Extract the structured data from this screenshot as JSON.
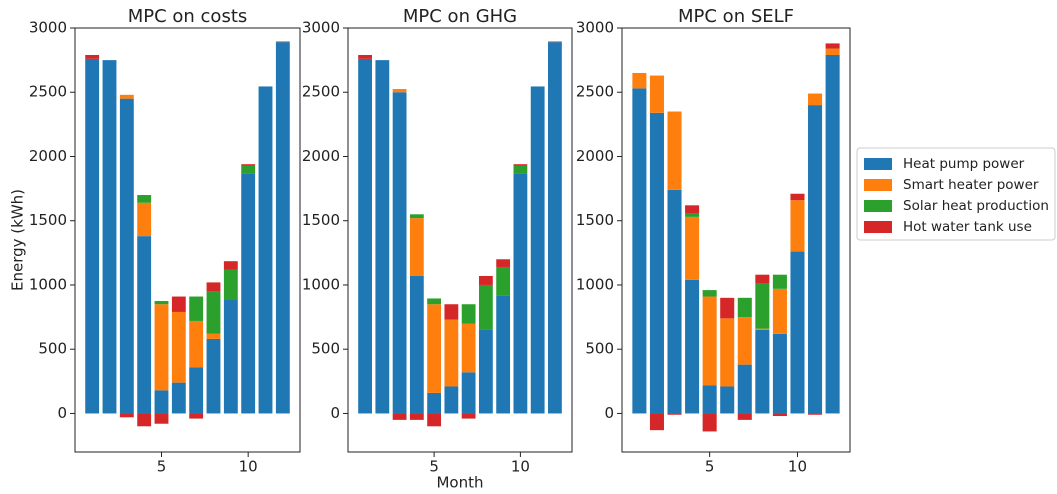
{
  "chart_data": [
    {
      "type": "bar",
      "stacked": true,
      "title": "MPC on costs",
      "ylabel": "Energy (kWh)",
      "x": [
        1,
        2,
        3,
        4,
        5,
        6,
        7,
        8,
        9,
        10,
        11,
        12
      ],
      "xlim": [
        0.01,
        12.99
      ],
      "xticks": [
        5,
        10
      ],
      "ylim": [
        -300,
        3000
      ],
      "yticks": [
        0,
        500,
        1000,
        1500,
        2000,
        2500,
        3000
      ],
      "series": [
        {
          "name": "Heat pump power",
          "color": "#1f77b4",
          "values": [
            2760,
            2750,
            2450,
            1380,
            180,
            240,
            360,
            580,
            890,
            1870,
            2545,
            2890
          ]
        },
        {
          "name": "Smart heater power",
          "color": "#ff7f0e",
          "values": [
            0,
            0,
            30,
            260,
            670,
            550,
            360,
            40,
            0,
            0,
            0,
            0
          ]
        },
        {
          "name": "Solar heat production",
          "color": "#2ca02c",
          "values": [
            0,
            0,
            0,
            60,
            25,
            0,
            190,
            330,
            230,
            60,
            0,
            0
          ]
        },
        {
          "name": "Hot water tank use",
          "color": "#d62728",
          "values": [
            30,
            0,
            -30,
            -100,
            -80,
            120,
            -40,
            70,
            65,
            10,
            0,
            5
          ]
        }
      ]
    },
    {
      "type": "bar",
      "stacked": true,
      "title": "MPC on GHG",
      "xlabel": "Month",
      "x": [
        1,
        2,
        3,
        4,
        5,
        6,
        7,
        8,
        9,
        10,
        11,
        12
      ],
      "xlim": [
        0.01,
        12.99
      ],
      "xticks": [
        5,
        10
      ],
      "ylim": [
        -300,
        3000
      ],
      "yticks": [
        0,
        500,
        1000,
        1500,
        2000,
        2500,
        3000
      ],
      "series": [
        {
          "name": "Heat pump power",
          "color": "#1f77b4",
          "values": [
            2760,
            2750,
            2500,
            1070,
            160,
            210,
            320,
            650,
            920,
            1870,
            2545,
            2890
          ]
        },
        {
          "name": "Smart heater power",
          "color": "#ff7f0e",
          "values": [
            0,
            0,
            25,
            450,
            690,
            520,
            380,
            0,
            0,
            0,
            0,
            0
          ]
        },
        {
          "name": "Solar heat production",
          "color": "#2ca02c",
          "values": [
            0,
            0,
            0,
            30,
            45,
            0,
            150,
            350,
            220,
            60,
            0,
            0
          ]
        },
        {
          "name": "Hot water tank use",
          "color": "#d62728",
          "values": [
            30,
            0,
            -50,
            -50,
            -100,
            120,
            -40,
            70,
            60,
            10,
            0,
            5
          ]
        }
      ]
    },
    {
      "type": "bar",
      "stacked": true,
      "title": "MPC on SELF",
      "x": [
        1,
        2,
        3,
        4,
        5,
        6,
        7,
        8,
        9,
        10,
        11,
        12
      ],
      "xlim": [
        0.01,
        12.99
      ],
      "xticks": [
        5,
        10
      ],
      "ylim": [
        -300,
        3000
      ],
      "yticks": [
        0,
        500,
        1000,
        1500,
        2000,
        2500,
        3000
      ],
      "series": [
        {
          "name": "Heat pump power",
          "color": "#1f77b4",
          "values": [
            2530,
            2340,
            1740,
            1040,
            220,
            210,
            380,
            650,
            620,
            1260,
            2400,
            2790
          ]
        },
        {
          "name": "Smart heater power",
          "color": "#ff7f0e",
          "values": [
            120,
            290,
            610,
            490,
            690,
            530,
            370,
            10,
            350,
            400,
            90,
            50
          ]
        },
        {
          "name": "Solar heat production",
          "color": "#2ca02c",
          "values": [
            0,
            0,
            0,
            30,
            50,
            0,
            150,
            350,
            110,
            0,
            0,
            0
          ]
        },
        {
          "name": "Hot water tank use",
          "color": "#d62728",
          "values": [
            0,
            -130,
            -10,
            60,
            -140,
            160,
            -50,
            70,
            -20,
            50,
            -10,
            40
          ]
        }
      ]
    }
  ]
}
